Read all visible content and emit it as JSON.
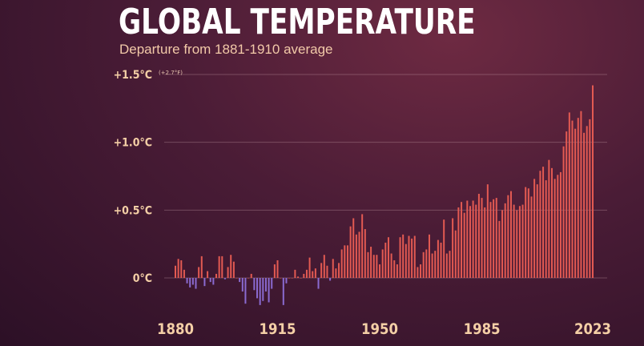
{
  "chart_data": {
    "type": "bar",
    "title": "GLOBAL TEMPERATURE",
    "subtitle": "Departure from 1881-1910 average",
    "x_start": 1880,
    "x_end": 2023,
    "yticks": [
      "0°C",
      "+0.5°C",
      "+1.0°C",
      "+1.5°C"
    ],
    "ytick_values": [
      0,
      0.5,
      1.0,
      1.5
    ],
    "ylim": [
      -0.25,
      1.5
    ],
    "ytick_note": "(+2.7°F)",
    "xticks": [
      "1880",
      "1915",
      "1950",
      "1985",
      "2023"
    ],
    "xtick_values": [
      1880,
      1915,
      1950,
      1985,
      2023
    ],
    "grid": true,
    "colors": {
      "positive": "#e35a52",
      "negative": "#8a6ad0"
    },
    "values": [
      0.09,
      0.14,
      0.13,
      0.06,
      -0.04,
      -0.07,
      -0.05,
      -0.08,
      0.08,
      0.16,
      -0.06,
      0.05,
      -0.03,
      -0.05,
      0.03,
      0.16,
      0.16,
      -0.01,
      0.08,
      0.17,
      0.12,
      0.0,
      -0.03,
      -0.1,
      -0.19,
      0.0,
      0.03,
      -0.09,
      -0.15,
      -0.2,
      -0.17,
      -0.1,
      -0.18,
      -0.08,
      0.1,
      0.13,
      0.0,
      -0.2,
      -0.04,
      0.0,
      0.0,
      0.06,
      0.01,
      0.0,
      0.03,
      0.06,
      0.15,
      0.05,
      0.07,
      -0.08,
      0.11,
      0.17,
      0.09,
      -0.02,
      0.14,
      0.07,
      0.11,
      0.21,
      0.24,
      0.24,
      0.38,
      0.44,
      0.32,
      0.34,
      0.47,
      0.36,
      0.19,
      0.23,
      0.17,
      0.17,
      0.1,
      0.21,
      0.26,
      0.3,
      0.18,
      0.13,
      0.1,
      0.3,
      0.32,
      0.25,
      0.31,
      0.29,
      0.31,
      0.08,
      0.1,
      0.19,
      0.21,
      0.32,
      0.18,
      0.2,
      0.28,
      0.26,
      0.43,
      0.18,
      0.2,
      0.44,
      0.35,
      0.52,
      0.56,
      0.48,
      0.57,
      0.53,
      0.57,
      0.54,
      0.62,
      0.59,
      0.52,
      0.69,
      0.56,
      0.58,
      0.59,
      0.42,
      0.5,
      0.55,
      0.61,
      0.64,
      0.54,
      0.5,
      0.53,
      0.54,
      0.67,
      0.66,
      0.6,
      0.73,
      0.69,
      0.79,
      0.82,
      0.72,
      0.87,
      0.81,
      0.73,
      0.76,
      0.78,
      0.97,
      1.08,
      1.22,
      1.16,
      1.1,
      1.18,
      1.23,
      1.07,
      1.12,
      1.17,
      1.42
    ]
  }
}
